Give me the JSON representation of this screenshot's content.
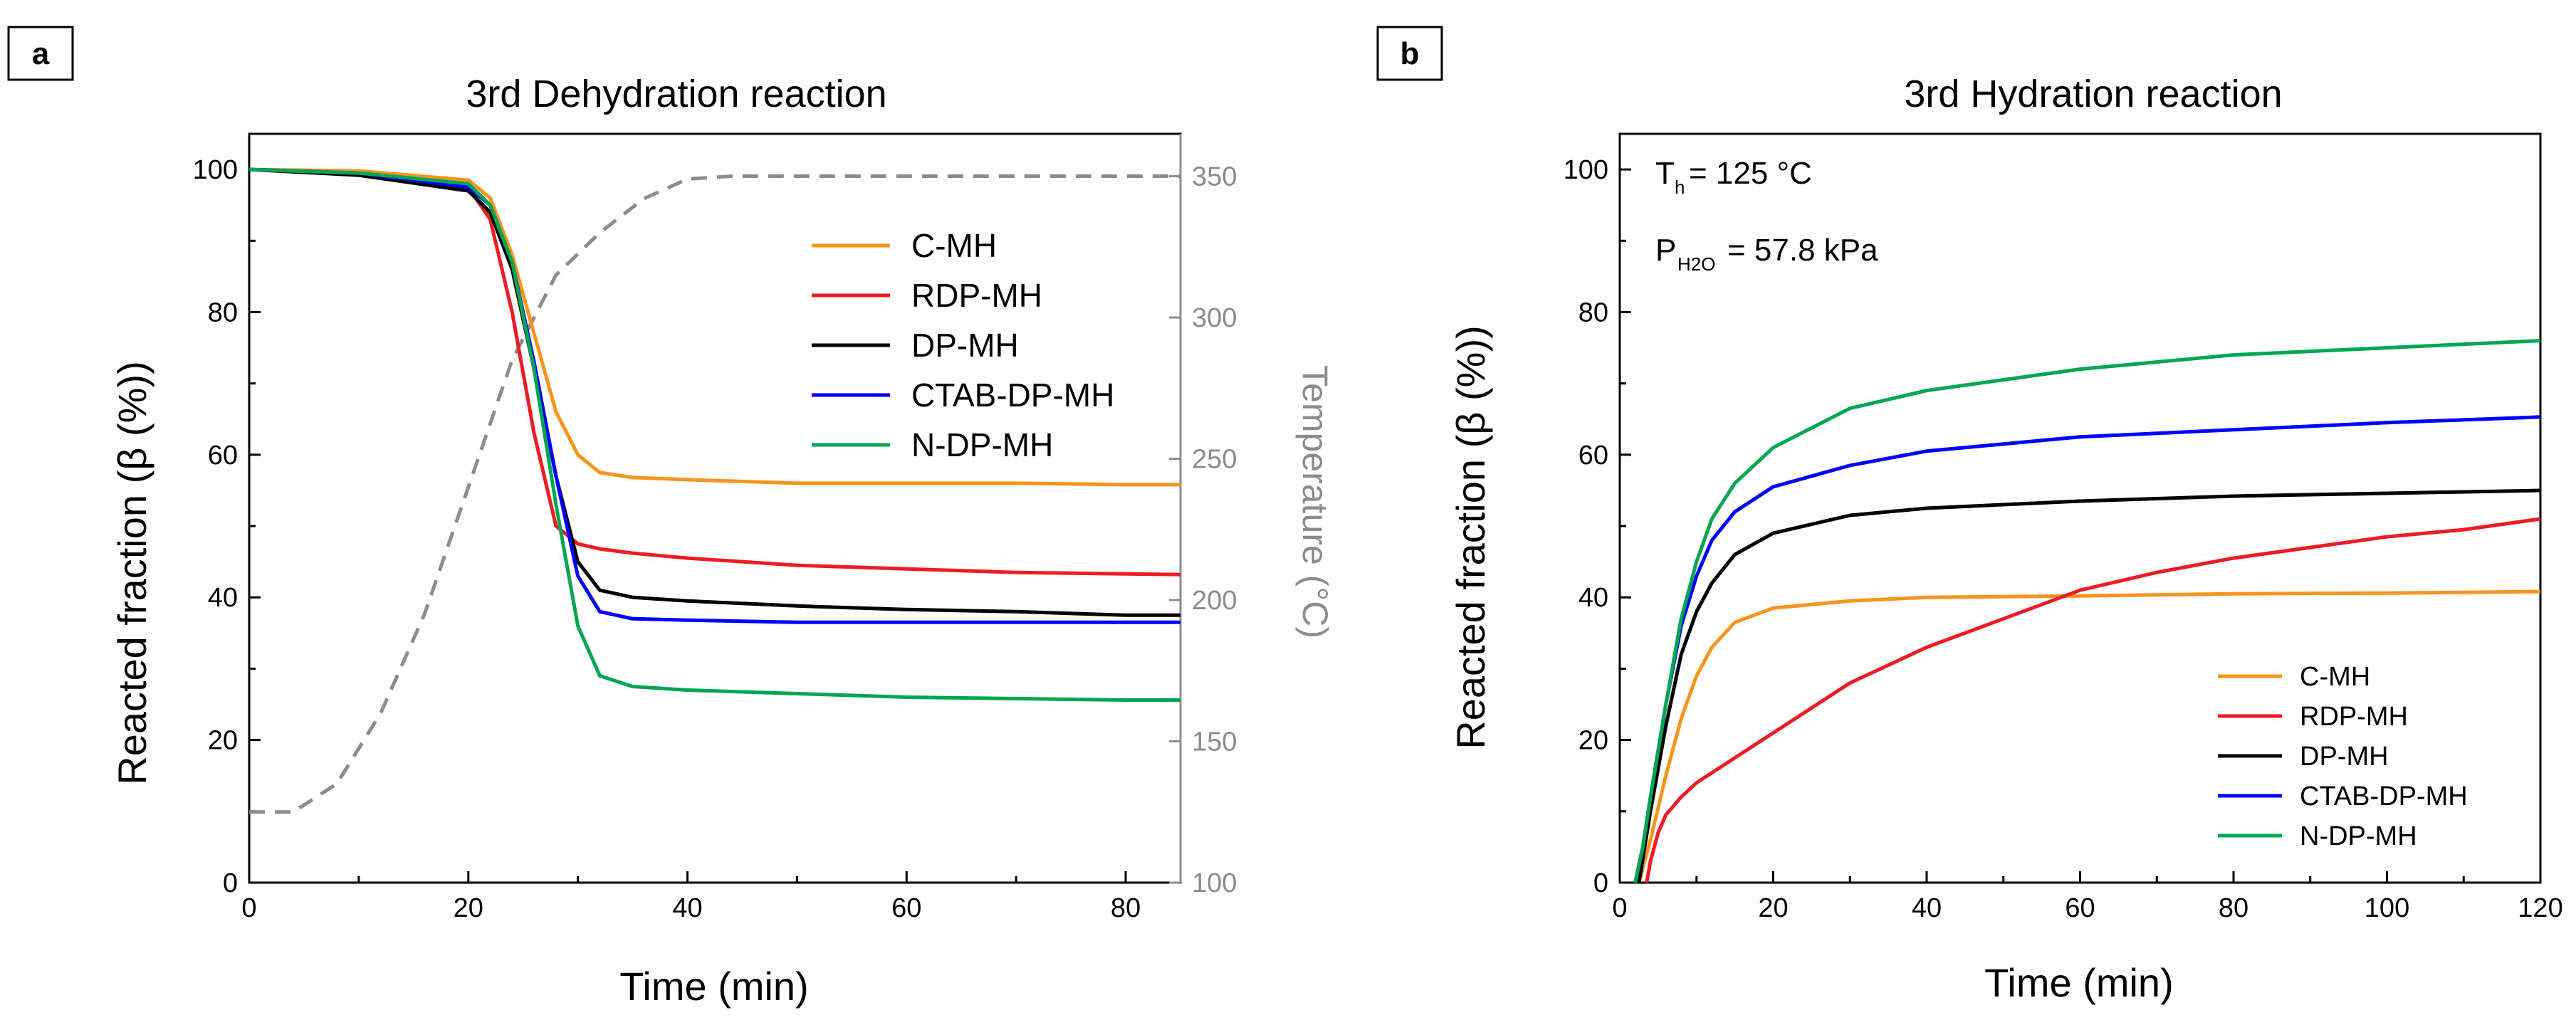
{
  "chart_data": [
    {
      "panel_label": "a",
      "type": "line",
      "title": "3rd Dehydration reaction",
      "xlabel": "Time (min)",
      "ylabel": "Reacted fraction (β (%))",
      "y2label": "Temperature (°C)",
      "xlim": [
        0,
        85
      ],
      "ylim": [
        0,
        105
      ],
      "y2lim": [
        100,
        365
      ],
      "xticks": [
        0,
        20,
        40,
        60,
        80
      ],
      "yticks": [
        0,
        20,
        40,
        60,
        80,
        100
      ],
      "y2ticks": [
        100,
        150,
        200,
        250,
        300,
        350
      ],
      "legend_position": "upper-right",
      "series": [
        {
          "name": "C-MH",
          "color": "#f7941d",
          "x": [
            0,
            10,
            20,
            22,
            24,
            26,
            28,
            30,
            32,
            35,
            40,
            50,
            60,
            70,
            80,
            85
          ],
          "values": [
            100,
            99.8,
            98.5,
            96,
            88,
            77,
            66,
            60,
            57.5,
            56.8,
            56.5,
            56,
            56,
            56,
            55.8,
            55.8
          ]
        },
        {
          "name": "RDP-MH",
          "color": "#ed1c24",
          "x": [
            0,
            10,
            20,
            22,
            24,
            26,
            28,
            30,
            32,
            35,
            40,
            50,
            60,
            70,
            80,
            85
          ],
          "values": [
            100,
            99.5,
            97.5,
            93,
            80,
            63,
            50,
            47.5,
            46.8,
            46.2,
            45.5,
            44.5,
            44,
            43.5,
            43.3,
            43.2
          ]
        },
        {
          "name": "DP-MH",
          "color": "#000000",
          "x": [
            0,
            10,
            20,
            22,
            24,
            26,
            28,
            30,
            32,
            35,
            40,
            50,
            60,
            70,
            80,
            85
          ],
          "values": [
            100,
            99.2,
            97,
            94,
            86,
            72,
            57,
            45,
            41,
            40,
            39.5,
            38.8,
            38.3,
            38,
            37.5,
            37.5
          ]
        },
        {
          "name": "CTAB-DP-MH",
          "color": "#0000ff",
          "x": [
            0,
            10,
            20,
            22,
            24,
            26,
            28,
            30,
            32,
            35,
            40,
            50,
            60,
            70,
            80,
            85
          ],
          "values": [
            100,
            99.5,
            97.5,
            95,
            87,
            73,
            57,
            43,
            38,
            37,
            36.8,
            36.5,
            36.5,
            36.5,
            36.5,
            36.5
          ]
        },
        {
          "name": "N-DP-MH",
          "color": "#00a651",
          "x": [
            0,
            10,
            20,
            22,
            24,
            26,
            28,
            30,
            32,
            35,
            40,
            50,
            60,
            70,
            80,
            85
          ],
          "values": [
            100,
            99.5,
            98,
            95,
            87,
            72,
            53,
            36,
            29,
            27.5,
            27,
            26.5,
            26,
            25.8,
            25.6,
            25.6
          ]
        }
      ],
      "temperature_series": {
        "name": "Temperature",
        "color": "#8c8c8c",
        "style": "dashed",
        "x": [
          0,
          4,
          8,
          12,
          16,
          20,
          24,
          28,
          32,
          36,
          40,
          44,
          85
        ],
        "values": [
          125,
          125,
          135,
          160,
          195,
          240,
          285,
          315,
          330,
          342,
          349,
          350,
          350
        ]
      }
    },
    {
      "panel_label": "b",
      "type": "line",
      "title": "3rd Hydration reaction",
      "xlabel": "Time (min)",
      "ylabel": "Reacted fraction (β (%))",
      "xlim": [
        0,
        120
      ],
      "ylim": [
        0,
        105
      ],
      "xticks": [
        0,
        20,
        40,
        60,
        80,
        100,
        120
      ],
      "yticks": [
        0,
        20,
        40,
        60,
        80,
        100
      ],
      "legend_position": "lower-right",
      "annotations": {
        "th_main": "T",
        "th_sub": "h",
        "th_value": "= 125 °C",
        "p_main": "P",
        "p_sub": "H2O",
        "p_value": "= 57.8 kPa"
      },
      "series": [
        {
          "name": "C-MH",
          "color": "#f7941d",
          "x": [
            2.5,
            4,
            6,
            8,
            10,
            12,
            15,
            20,
            30,
            40,
            60,
            80,
            100,
            120
          ],
          "values": [
            0,
            6,
            15,
            23,
            29,
            33,
            36.5,
            38.5,
            39.5,
            40,
            40.2,
            40.5,
            40.6,
            40.8
          ]
        },
        {
          "name": "RDP-MH",
          "color": "#ed1c24",
          "x": [
            3.5,
            4,
            5,
            6,
            8,
            10,
            15,
            20,
            30,
            40,
            50,
            60,
            70,
            80,
            90,
            100,
            110,
            120
          ],
          "values": [
            0,
            3,
            7,
            9.5,
            12,
            14,
            17.5,
            21,
            28,
            33,
            37,
            41,
            43.5,
            45.5,
            47,
            48.5,
            49.5,
            51
          ]
        },
        {
          "name": "DP-MH",
          "color": "#000000",
          "x": [
            2.5,
            4,
            6,
            8,
            10,
            12,
            15,
            20,
            30,
            40,
            60,
            80,
            100,
            120
          ],
          "values": [
            0,
            10,
            22,
            32,
            38,
            42,
            46,
            49,
            51.5,
            52.5,
            53.5,
            54.2,
            54.6,
            55
          ]
        },
        {
          "name": "CTAB-DP-MH",
          "color": "#0000ff",
          "x": [
            2,
            3,
            4,
            6,
            8,
            10,
            12,
            15,
            20,
            30,
            40,
            60,
            80,
            100,
            120
          ],
          "values": [
            0,
            5,
            12,
            25,
            36,
            43,
            48,
            52,
            55.5,
            58.5,
            60.5,
            62.5,
            63.5,
            64.5,
            65.3
          ]
        },
        {
          "name": "N-DP-MH",
          "color": "#00a651",
          "x": [
            2,
            3,
            4,
            6,
            8,
            10,
            12,
            15,
            20,
            30,
            40,
            60,
            80,
            100,
            120
          ],
          "values": [
            0,
            5,
            12,
            25,
            37,
            45,
            51,
            56,
            61,
            66.5,
            69,
            72,
            74,
            75,
            76
          ]
        }
      ]
    }
  ]
}
